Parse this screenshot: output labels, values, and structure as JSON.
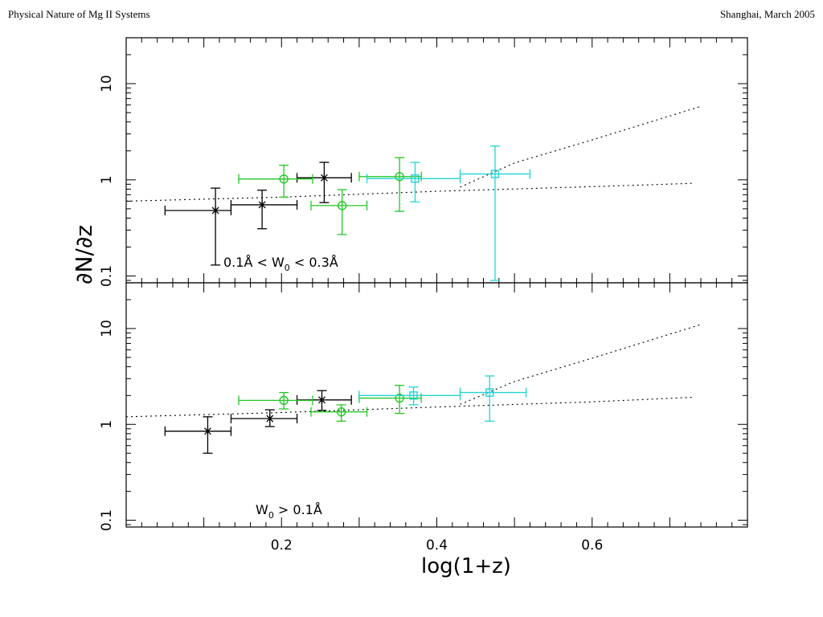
{
  "header": {
    "left": "Physical Nature of Mg II Systems",
    "right": "Shanghai, March 2005"
  },
  "chart_data": {
    "type": "scatter",
    "log_y": true,
    "ylabel": "∂N/∂z",
    "xlabel": "log(1+z)",
    "xlim": [
      0.0,
      0.8
    ],
    "x_ticks": [
      "0.2",
      "0.4",
      "0.6"
    ],
    "y_ticks": [
      "0.1",
      "1",
      "10"
    ],
    "colors": {
      "black": "#000000",
      "green": "#22c822",
      "cyan": "#22d4d4"
    },
    "panels": [
      {
        "label": "0.1Å < W",
        "label_sub": "0",
        "label_rest": " < 0.3Å",
        "ylim": [
          0.085,
          30
        ],
        "series": [
          {
            "marker": "x",
            "color": "#000000",
            "points": [
              {
                "x": 0.115,
                "y": 0.48,
                "xlo": 0.05,
                "xhi": 0.135,
                "ylo": 0.13,
                "yhi": 0.82
              },
              {
                "x": 0.175,
                "y": 0.55,
                "xlo": 0.135,
                "xhi": 0.22,
                "ylo": 0.31,
                "yhi": 0.78
              },
              {
                "x": 0.255,
                "y": 1.05,
                "xlo": 0.22,
                "xhi": 0.29,
                "ylo": 0.58,
                "yhi": 1.52
              }
            ]
          },
          {
            "marker": "circle",
            "color": "#22c822",
            "points": [
              {
                "x": 0.203,
                "y": 1.02,
                "xlo": 0.145,
                "xhi": 0.24,
                "ylo": 0.66,
                "yhi": 1.42
              },
              {
                "x": 0.278,
                "y": 0.54,
                "xlo": 0.238,
                "xhi": 0.31,
                "ylo": 0.27,
                "yhi": 0.79
              },
              {
                "x": 0.352,
                "y": 1.08,
                "xlo": 0.3,
                "xhi": 0.38,
                "ylo": 0.47,
                "yhi": 1.7
              }
            ]
          },
          {
            "marker": "square",
            "color": "#22d4d4",
            "points": [
              {
                "x": 0.372,
                "y": 1.03,
                "xlo": 0.31,
                "xhi": 0.43,
                "ylo": 0.59,
                "yhi": 1.52
              },
              {
                "x": 0.475,
                "y": 1.15,
                "xlo": 0.43,
                "xhi": 0.52,
                "ylo": 0.09,
                "yhi": 2.25
              }
            ]
          }
        ],
        "curves": [
          {
            "points": [
              [
                0.0,
                0.6
              ],
              [
                0.2,
                0.66
              ],
              [
                0.4,
                0.76
              ],
              [
                0.6,
                0.85
              ],
              [
                0.73,
                0.92
              ]
            ]
          },
          {
            "points": [
              [
                0.43,
                0.84
              ],
              [
                0.5,
                1.5
              ],
              [
                0.6,
                2.6
              ],
              [
                0.74,
                5.8
              ]
            ]
          }
        ]
      },
      {
        "label": "W",
        "label_sub": "0",
        "label_rest": " > 0.1Å",
        "ylim": [
          0.085,
          30
        ],
        "series": [
          {
            "marker": "x",
            "color": "#000000",
            "points": [
              {
                "x": 0.105,
                "y": 0.85,
                "xlo": 0.05,
                "xhi": 0.135,
                "ylo": 0.5,
                "yhi": 1.2
              },
              {
                "x": 0.185,
                "y": 1.15,
                "xlo": 0.135,
                "xhi": 0.22,
                "ylo": 0.95,
                "yhi": 1.42
              },
              {
                "x": 0.252,
                "y": 1.8,
                "xlo": 0.22,
                "xhi": 0.29,
                "ylo": 1.4,
                "yhi": 2.25
              }
            ]
          },
          {
            "marker": "circle",
            "color": "#22c822",
            "points": [
              {
                "x": 0.203,
                "y": 1.78,
                "xlo": 0.145,
                "xhi": 0.24,
                "ylo": 1.45,
                "yhi": 2.15
              },
              {
                "x": 0.277,
                "y": 1.35,
                "xlo": 0.238,
                "xhi": 0.31,
                "ylo": 1.08,
                "yhi": 1.6
              },
              {
                "x": 0.352,
                "y": 1.88,
                "xlo": 0.3,
                "xhi": 0.38,
                "ylo": 1.3,
                "yhi": 2.55
              }
            ]
          },
          {
            "marker": "square",
            "color": "#22d4d4",
            "points": [
              {
                "x": 0.37,
                "y": 2.0,
                "xlo": 0.3,
                "xhi": 0.43,
                "ylo": 1.6,
                "yhi": 2.45
              },
              {
                "x": 0.468,
                "y": 2.15,
                "xlo": 0.43,
                "xhi": 0.515,
                "ylo": 1.08,
                "yhi": 3.2
              }
            ]
          }
        ],
        "curves": [
          {
            "points": [
              [
                0.0,
                1.2
              ],
              [
                0.2,
                1.33
              ],
              [
                0.4,
                1.52
              ],
              [
                0.6,
                1.72
              ],
              [
                0.73,
                1.92
              ]
            ]
          },
          {
            "points": [
              [
                0.43,
                1.62
              ],
              [
                0.5,
                2.8
              ],
              [
                0.6,
                4.9
              ],
              [
                0.74,
                11
              ]
            ]
          }
        ]
      }
    ]
  }
}
